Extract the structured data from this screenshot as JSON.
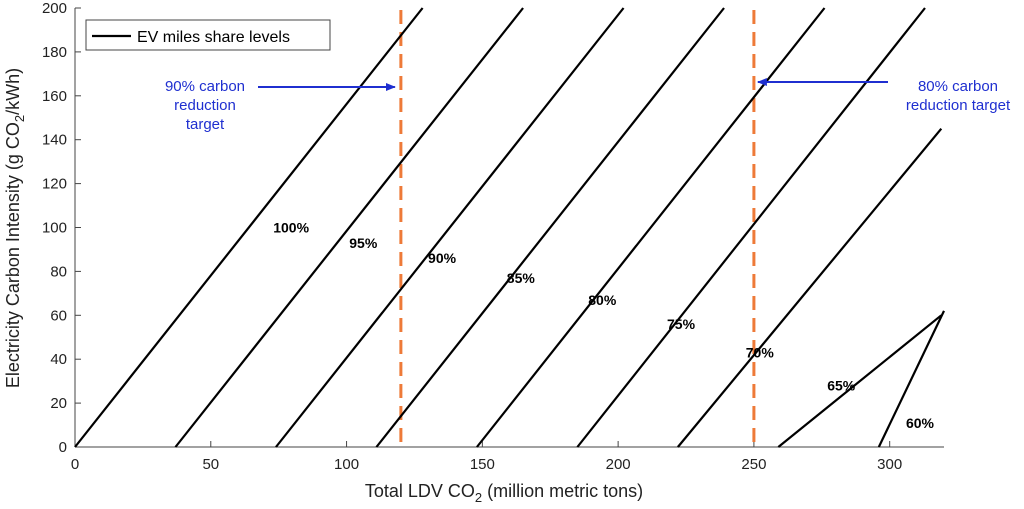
{
  "chart_data": {
    "type": "line",
    "title": "",
    "xlabel_main": "Total LDV CO",
    "xlabel_sub": "2",
    "xlabel_rest": " (million metric tons)",
    "ylabel_main": "Electricity Carbon Intensity (g CO",
    "ylabel_sub": "2",
    "ylabel_rest": "/kWh)",
    "xlim": [
      0,
      320
    ],
    "ylim": [
      0,
      200
    ],
    "xticks": [
      0,
      50,
      100,
      150,
      200,
      250,
      300
    ],
    "yticks": [
      0,
      20,
      40,
      60,
      80,
      100,
      120,
      140,
      160,
      180,
      200
    ],
    "grid": false,
    "legend": {
      "position": "top-left",
      "entries": [
        "EV miles share levels"
      ]
    },
    "series": [
      {
        "name": "100%",
        "x": [
          0,
          128
        ],
        "y": [
          0,
          200
        ],
        "label_at": [
          73,
          100
        ]
      },
      {
        "name": "95%",
        "x": [
          37,
          165
        ],
        "y": [
          0,
          200
        ],
        "label_at": [
          101,
          93
        ]
      },
      {
        "name": "90%",
        "x": [
          74,
          202
        ],
        "y": [
          0,
          200
        ],
        "label_at": [
          130,
          86
        ]
      },
      {
        "name": "85%",
        "x": [
          111,
          239
        ],
        "y": [
          0,
          200
        ],
        "label_at": [
          159,
          77
        ]
      },
      {
        "name": "80%",
        "x": [
          148,
          276
        ],
        "y": [
          0,
          200
        ],
        "label_at": [
          189,
          67
        ]
      },
      {
        "name": "75%",
        "x": [
          185,
          313
        ],
        "y": [
          0,
          200
        ],
        "label_at": [
          218,
          56
        ]
      },
      {
        "name": "70%",
        "x": [
          222,
          319
        ],
        "y": [
          0,
          145
        ],
        "label_at": [
          247,
          43
        ]
      },
      {
        "name": "65%",
        "x": [
          259,
          319
        ],
        "y": [
          0,
          60
        ],
        "label_at": [
          277,
          28
        ]
      },
      {
        "name": "60%",
        "x": [
          296,
          320
        ],
        "y": [
          0,
          62
        ],
        "label_at": [
          306,
          11
        ]
      }
    ],
    "reference_lines": [
      {
        "x": 120,
        "color": "#ee7a38"
      },
      {
        "x": 250,
        "color": "#ee7a38"
      }
    ],
    "annotations": [
      {
        "lines": [
          "90% carbon",
          "reduction",
          "target"
        ],
        "arrow_to": [
          120,
          164
        ],
        "color": "#1f2fd0"
      },
      {
        "lines": [
          "80% carbon",
          "reduction target"
        ],
        "arrow_to": [
          250,
          166
        ],
        "color": "#1f2fd0"
      }
    ]
  }
}
